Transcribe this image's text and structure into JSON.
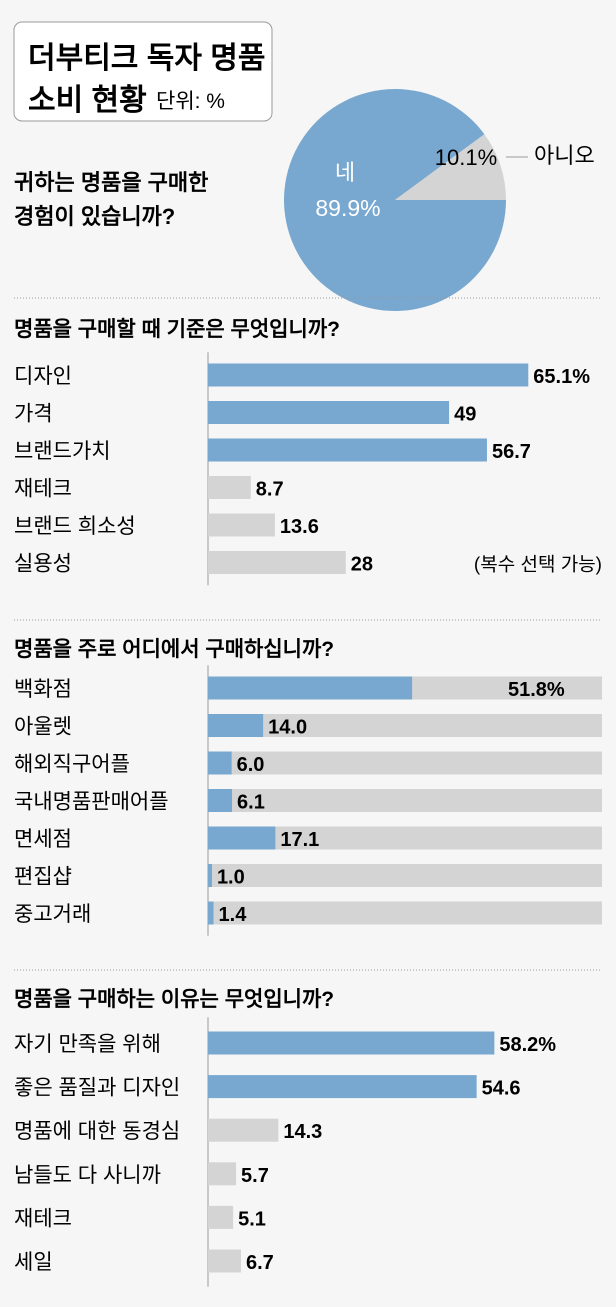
{
  "header": {
    "title_line1": "더부티크 독자 명품",
    "title_line2": "소비 현황",
    "unit": "단위: %"
  },
  "colors": {
    "background": "#f6f6f6",
    "highlight": "#78a8d0",
    "muted": "#d4d4d4",
    "text": "#1a1a1a"
  },
  "chart_data": [
    {
      "type": "pie",
      "title": "귀하는 명품을 구매한 경험이 있습니까?",
      "title_lines": [
        "귀하는 명품을 구매한",
        "경험이 있습니까?"
      ],
      "slices": [
        {
          "label": "네",
          "value": 89.9,
          "display": "89.9%"
        },
        {
          "label": "아니오",
          "value": 10.1,
          "display": "10.1%"
        }
      ]
    },
    {
      "type": "bar",
      "title": "명품을 구매할 때 기준은 무엇입니까?",
      "note": "(복수 선택 가능)",
      "categories": [
        "디자인",
        "가격",
        "브랜드가치",
        "재테크",
        "브랜드 희소성",
        "실용성"
      ],
      "values": [
        65.1,
        49,
        56.7,
        8.7,
        13.6,
        28
      ],
      "labels": [
        "65.1%",
        "49",
        "56.7",
        "8.7",
        "13.6",
        "28"
      ],
      "highlight": [
        true,
        true,
        true,
        false,
        false,
        false
      ],
      "track": false
    },
    {
      "type": "bar",
      "title": "명품을 주로 어디에서 구매하십니까?",
      "categories": [
        "백화점",
        "아울렛",
        "해외직구어플",
        "국내명품판매어플",
        "면세점",
        "편집샵",
        "중고거래"
      ],
      "values": [
        51.8,
        14.0,
        6.0,
        6.1,
        17.1,
        1.0,
        1.4
      ],
      "labels": [
        "51.8%",
        "14.0",
        "6.0",
        "6.1",
        "17.1",
        "1.0",
        "1.4"
      ],
      "highlight": [
        true,
        true,
        true,
        true,
        true,
        true,
        true
      ],
      "track": true,
      "xlim": [
        0,
        100
      ]
    },
    {
      "type": "bar",
      "title": "명품을 구매하는 이유는 무엇입니까?",
      "categories": [
        "자기 만족을 위해",
        "좋은 품질과 디자인",
        "명품에 대한 동경심",
        "남들도 다 사니까",
        "재테크",
        "세일"
      ],
      "values": [
        58.2,
        54.6,
        14.3,
        5.7,
        5.1,
        6.7
      ],
      "labels": [
        "58.2%",
        "54.6",
        "14.3",
        "5.7",
        "5.1",
        "6.7"
      ],
      "highlight": [
        true,
        true,
        false,
        false,
        false,
        false
      ],
      "track": false
    }
  ]
}
